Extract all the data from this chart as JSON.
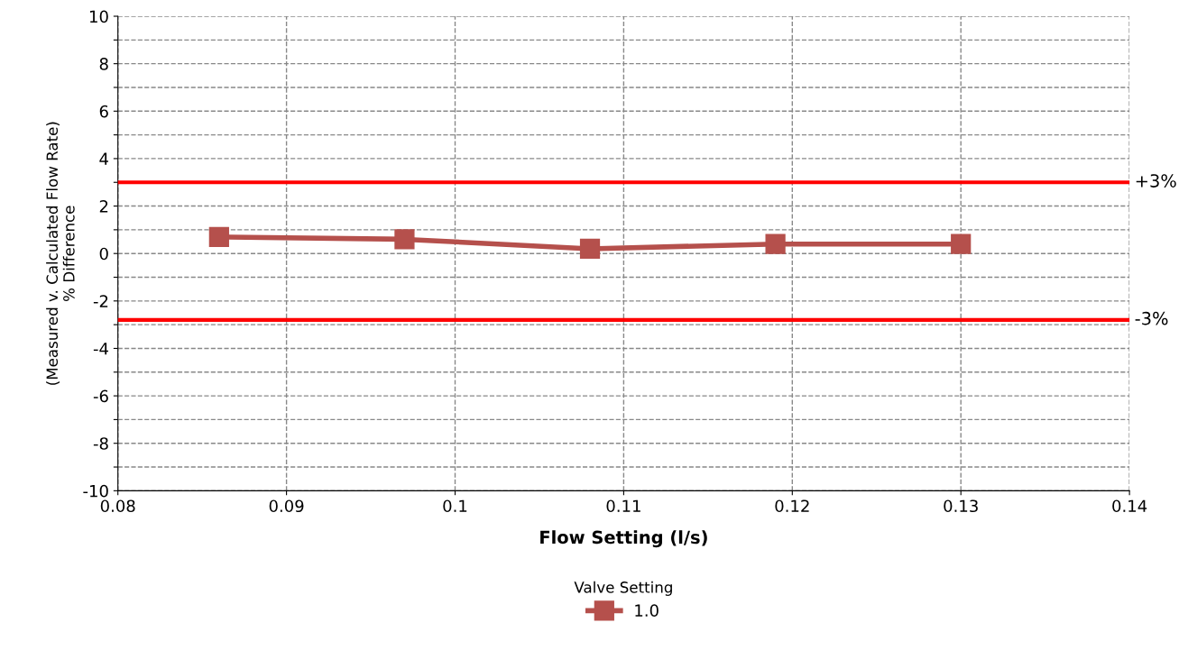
{
  "chart_data": {
    "type": "line",
    "xlabel": "Flow Setting (l/s)",
    "ylabel": "(Measured v. Calculated Flow Rate)\n% Difference",
    "x": [
      0.086,
      0.097,
      0.108,
      0.119,
      0.13
    ],
    "series": [
      {
        "name": "1.0",
        "color": "#b5504c",
        "values": [
          0.7,
          0.6,
          0.2,
          0.4,
          0.4
        ]
      }
    ],
    "xlim": [
      0.08,
      0.14
    ],
    "xticks": [
      0.08,
      0.09,
      0.1,
      0.11,
      0.12,
      0.13,
      0.14
    ],
    "ylim": [
      -10,
      10
    ],
    "yticks": [
      -10,
      {
        "value": -9,
        "label": null
      },
      -8,
      {
        "value": -7,
        "label": null
      },
      -6,
      {
        "value": -5,
        "label": null
      },
      -4,
      {
        "value": -3,
        "label": null
      },
      -2,
      {
        "value": -1,
        "label": null
      },
      0,
      {
        "value": 1,
        "label": null
      },
      2,
      {
        "value": 3,
        "label": null
      },
      4,
      {
        "value": 5,
        "label": null
      },
      6,
      {
        "value": 7,
        "label": null
      },
      8,
      {
        "value": 9,
        "label": null
      },
      10
    ],
    "ref_lines": [
      {
        "axis": "y",
        "value": 3,
        "label": "+3%",
        "color": "#ff0000"
      },
      {
        "axis": "y",
        "value": -2.8,
        "label": "-3%",
        "color": "#ff0000"
      }
    ],
    "legend_title": "Valve Setting",
    "legend": "bottom",
    "grid": true,
    "marker": "square",
    "line_style": "solid"
  }
}
